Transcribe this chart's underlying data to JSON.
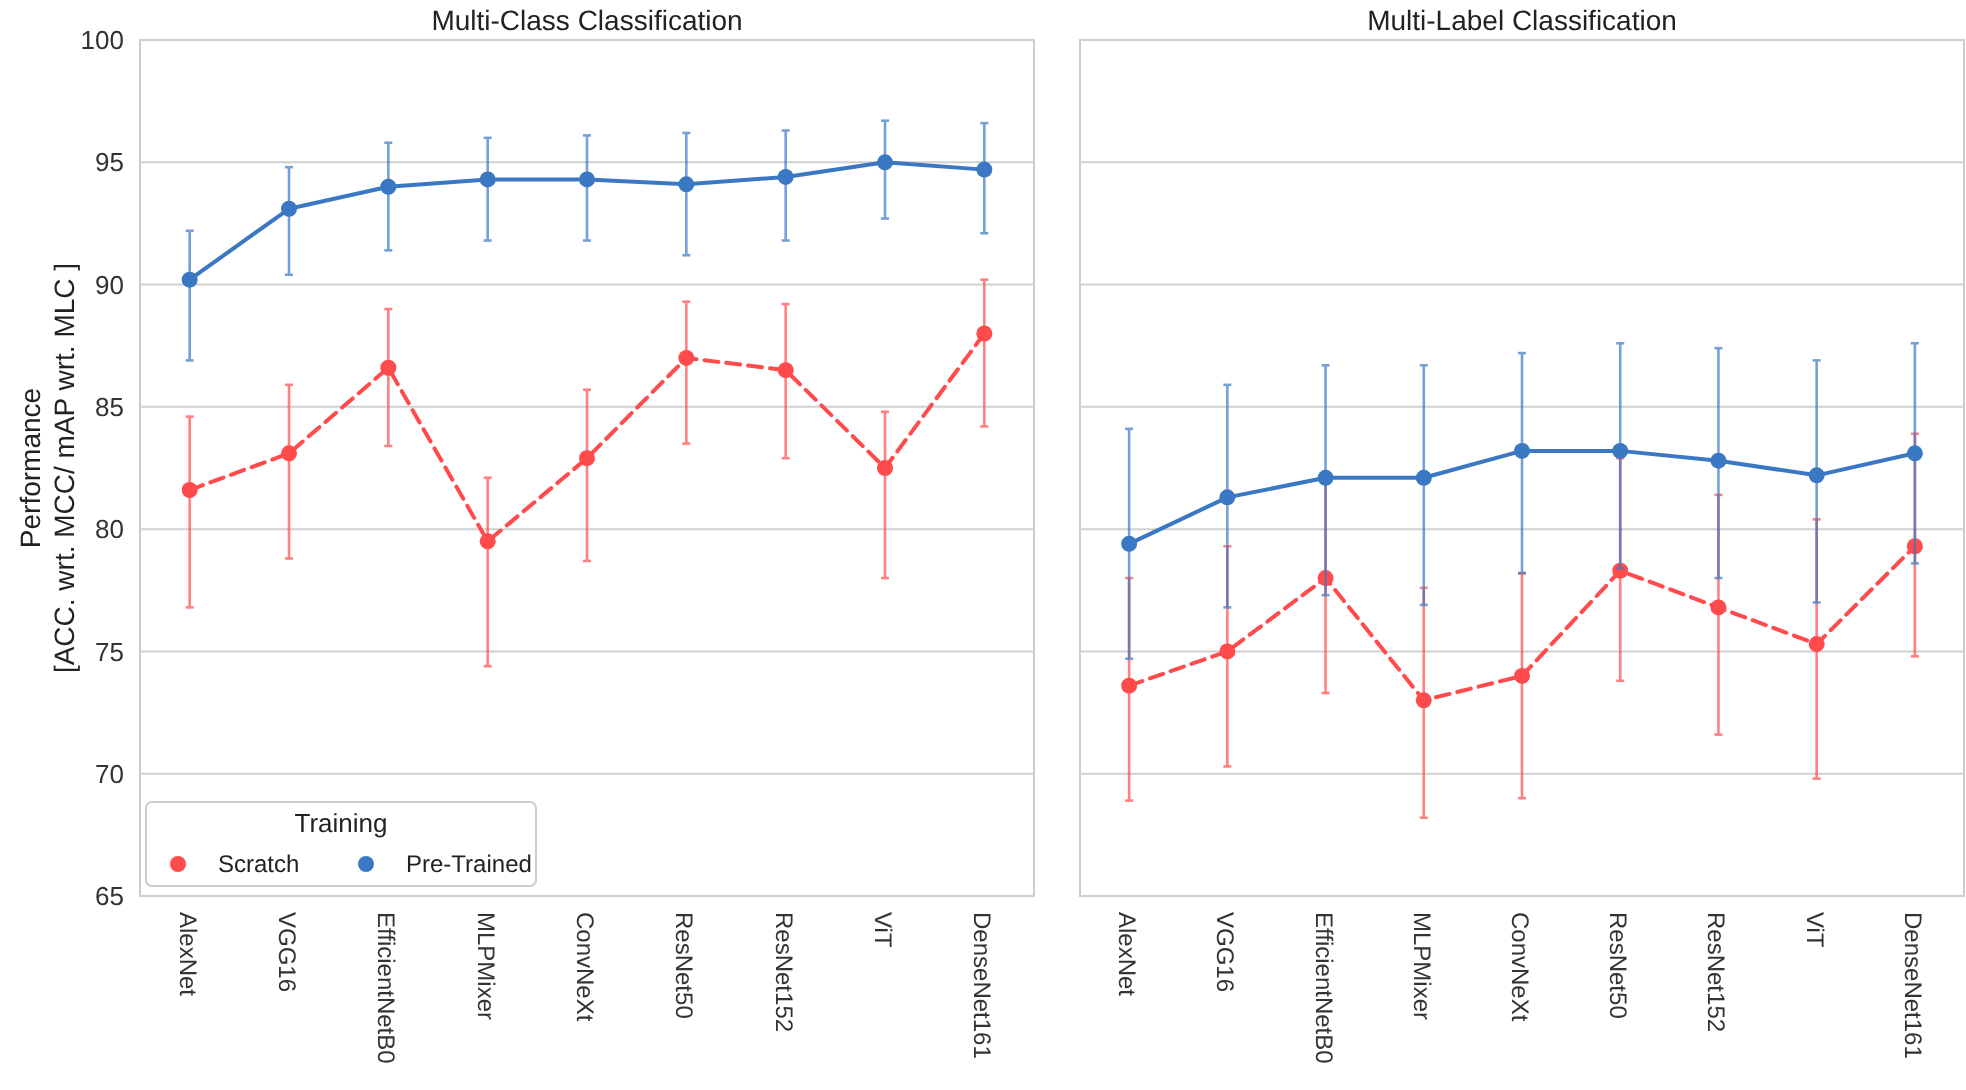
{
  "chart_data": [
    {
      "type": "line",
      "title": "Multi-Class Classification",
      "ylabel": "Performance\n[ACC. wrt. MCC/ mAP wrt. MLC ]",
      "legend_title": "Training",
      "legend": "bottom left",
      "grid": "y",
      "marker": "circle",
      "categories": [
        "AlexNet",
        "VGG16",
        "EfficientNetB0",
        "MLPMixer",
        "ConvNeXt",
        "ResNet50",
        "ResNet152",
        "ViT",
        "DenseNet161"
      ],
      "ylim": [
        65,
        100
      ],
      "yticks": [
        65,
        70,
        75,
        80,
        85,
        90,
        95,
        100
      ],
      "series": [
        {
          "name": "Scratch",
          "color": "#ff4b4b",
          "line_style": "dashed",
          "values": [
            81.6,
            83.1,
            86.6,
            79.5,
            82.9,
            87.0,
            86.5,
            82.5,
            88.0
          ],
          "errors": [
            [
              76.8,
              84.6
            ],
            [
              78.8,
              85.9
            ],
            [
              83.4,
              89.0
            ],
            [
              74.4,
              82.1
            ],
            [
              78.7,
              85.7
            ],
            [
              83.5,
              89.3
            ],
            [
              82.9,
              89.2
            ],
            [
              78.0,
              84.8
            ],
            [
              84.2,
              90.2
            ]
          ]
        },
        {
          "name": "Pre-Trained",
          "color": "#3a78c4",
          "line_style": "solid",
          "values": [
            90.2,
            93.1,
            94.0,
            94.3,
            94.3,
            94.1,
            94.4,
            95.0,
            94.7
          ],
          "errors": [
            [
              86.9,
              92.2
            ],
            [
              90.4,
              94.8
            ],
            [
              91.4,
              95.8
            ],
            [
              91.8,
              96.0
            ],
            [
              91.8,
              96.1
            ],
            [
              91.2,
              96.2
            ],
            [
              91.8,
              96.3
            ],
            [
              92.7,
              96.7
            ],
            [
              92.1,
              96.6
            ]
          ]
        }
      ]
    },
    {
      "type": "line",
      "title": "Multi-Label Classification",
      "grid": "y",
      "marker": "circle",
      "tick_labels": "x",
      "categories": [
        "AlexNet",
        "VGG16",
        "EfficientNetB0",
        "MLPMixer",
        "ConvNeXt",
        "ResNet50",
        "ResNet152",
        "ViT",
        "DenseNet161"
      ],
      "ylim": [
        65,
        100
      ],
      "yticks": [
        65,
        70,
        75,
        80,
        85,
        90,
        95,
        100
      ],
      "series": [
        {
          "color": "#ff4b4b",
          "line_style": "dashed",
          "values": [
            73.6,
            75.0,
            78.0,
            73.0,
            74.0,
            78.3,
            76.8,
            75.3,
            79.3
          ],
          "errors": [
            [
              68.9,
              78.0
            ],
            [
              70.3,
              79.3
            ],
            [
              73.3,
              82.3
            ],
            [
              68.2,
              77.6
            ],
            [
              69.0,
              78.2
            ],
            [
              73.8,
              82.9
            ],
            [
              71.6,
              81.4
            ],
            [
              69.8,
              80.4
            ],
            [
              74.8,
              83.9
            ]
          ]
        },
        {
          "color": "#3a78c4",
          "line_style": "solid",
          "values": [
            79.4,
            81.3,
            82.1,
            82.1,
            83.2,
            83.2,
            82.8,
            82.2,
            83.1
          ],
          "errors": [
            [
              74.7,
              84.1
            ],
            [
              76.8,
              85.9
            ],
            [
              77.3,
              86.7
            ],
            [
              76.9,
              86.7
            ],
            [
              78.2,
              87.2
            ],
            [
              78.4,
              87.6
            ],
            [
              78.0,
              87.4
            ],
            [
              77.0,
              86.9
            ],
            [
              78.6,
              87.6
            ]
          ]
        }
      ]
    }
  ]
}
